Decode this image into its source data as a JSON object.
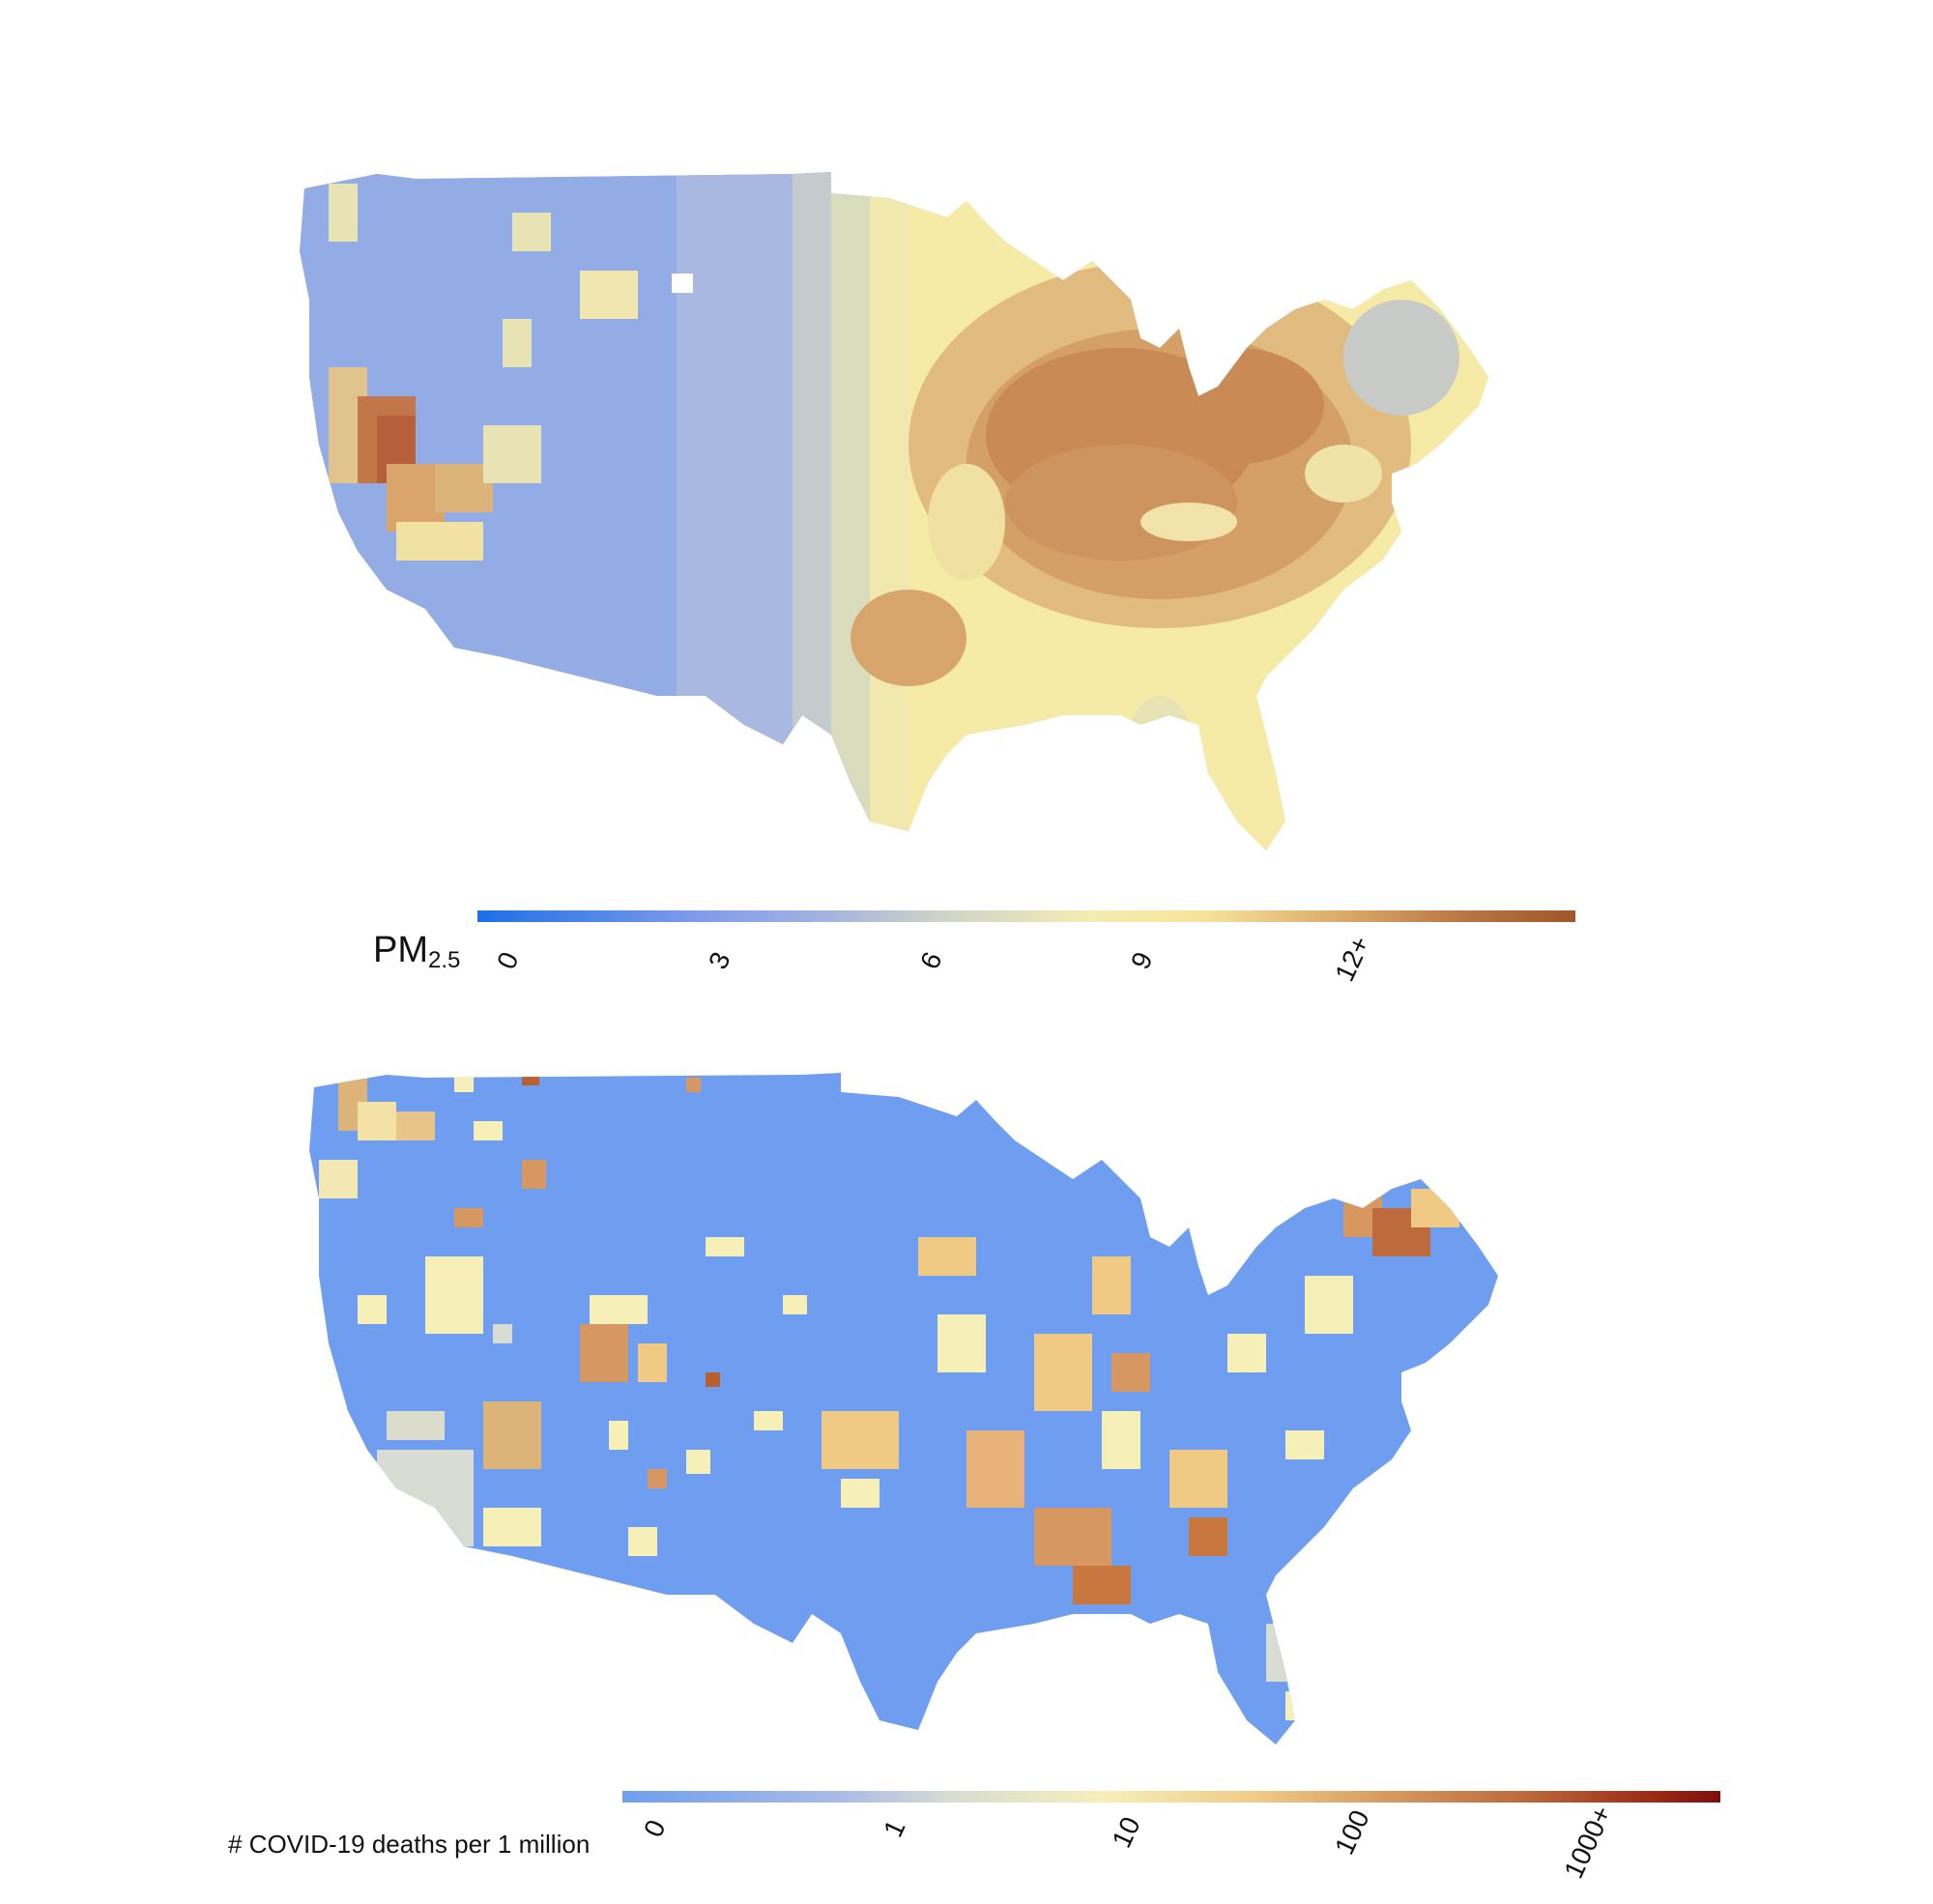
{
  "maps": [
    {
      "id": "pm25",
      "legend": {
        "title_main": "PM",
        "title_sub": "2.5",
        "ticks": [
          "0",
          "3",
          "6",
          "9",
          "12+"
        ],
        "colors": [
          "#1e6fe8",
          "#a4b4e0",
          "#f4ecb2",
          "#ddad6c",
          "#a05628"
        ]
      }
    },
    {
      "id": "covid",
      "legend": {
        "title": "# COVID-19 deaths per 1 million",
        "ticks": [
          "0",
          "1",
          "10",
          "100",
          "1000+"
        ],
        "colors": [
          "#6f9ef0",
          "#d8dcd2",
          "#f6efb8",
          "#d69860",
          "#7e0d0c"
        ]
      }
    }
  ]
}
